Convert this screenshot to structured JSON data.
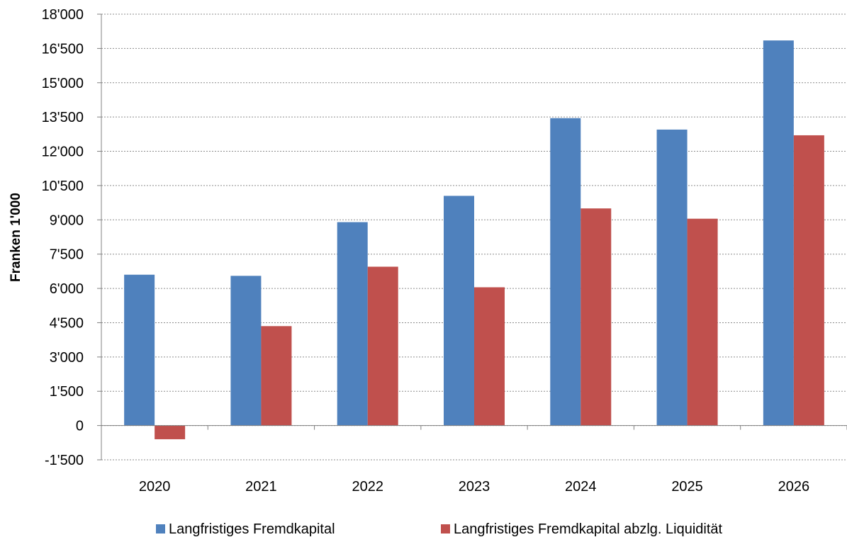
{
  "chart_data": {
    "type": "bar",
    "title": "",
    "xlabel": "",
    "ylabel": "Franken 1'000",
    "categories": [
      "2020",
      "2021",
      "2022",
      "2023",
      "2024",
      "2025",
      "2026"
    ],
    "series": [
      {
        "name": "Langfristiges Fremdkapital",
        "color": "#4F81BD",
        "values": [
          6600,
          6550,
          8900,
          10050,
          13450,
          12950,
          16850
        ]
      },
      {
        "name": "Langfristiges Fremdkapital abzlg. Liquidität",
        "color": "#C0504D",
        "values": [
          -600,
          4350,
          6950,
          6050,
          9500,
          9050,
          12700
        ]
      }
    ],
    "ylim": [
      -1500,
      18000
    ],
    "yticks": [
      -1500,
      0,
      1500,
      3000,
      4500,
      6000,
      7500,
      9000,
      10500,
      12000,
      13500,
      15000,
      16500,
      18000
    ],
    "ytick_labels": [
      "-1'500",
      "0",
      "1'500",
      "3'000",
      "4'500",
      "6'000",
      "7'500",
      "9'000",
      "10'500",
      "12'000",
      "13'500",
      "15'000",
      "16'500",
      "18'000"
    ],
    "grid": true,
    "legend_position": "bottom"
  }
}
